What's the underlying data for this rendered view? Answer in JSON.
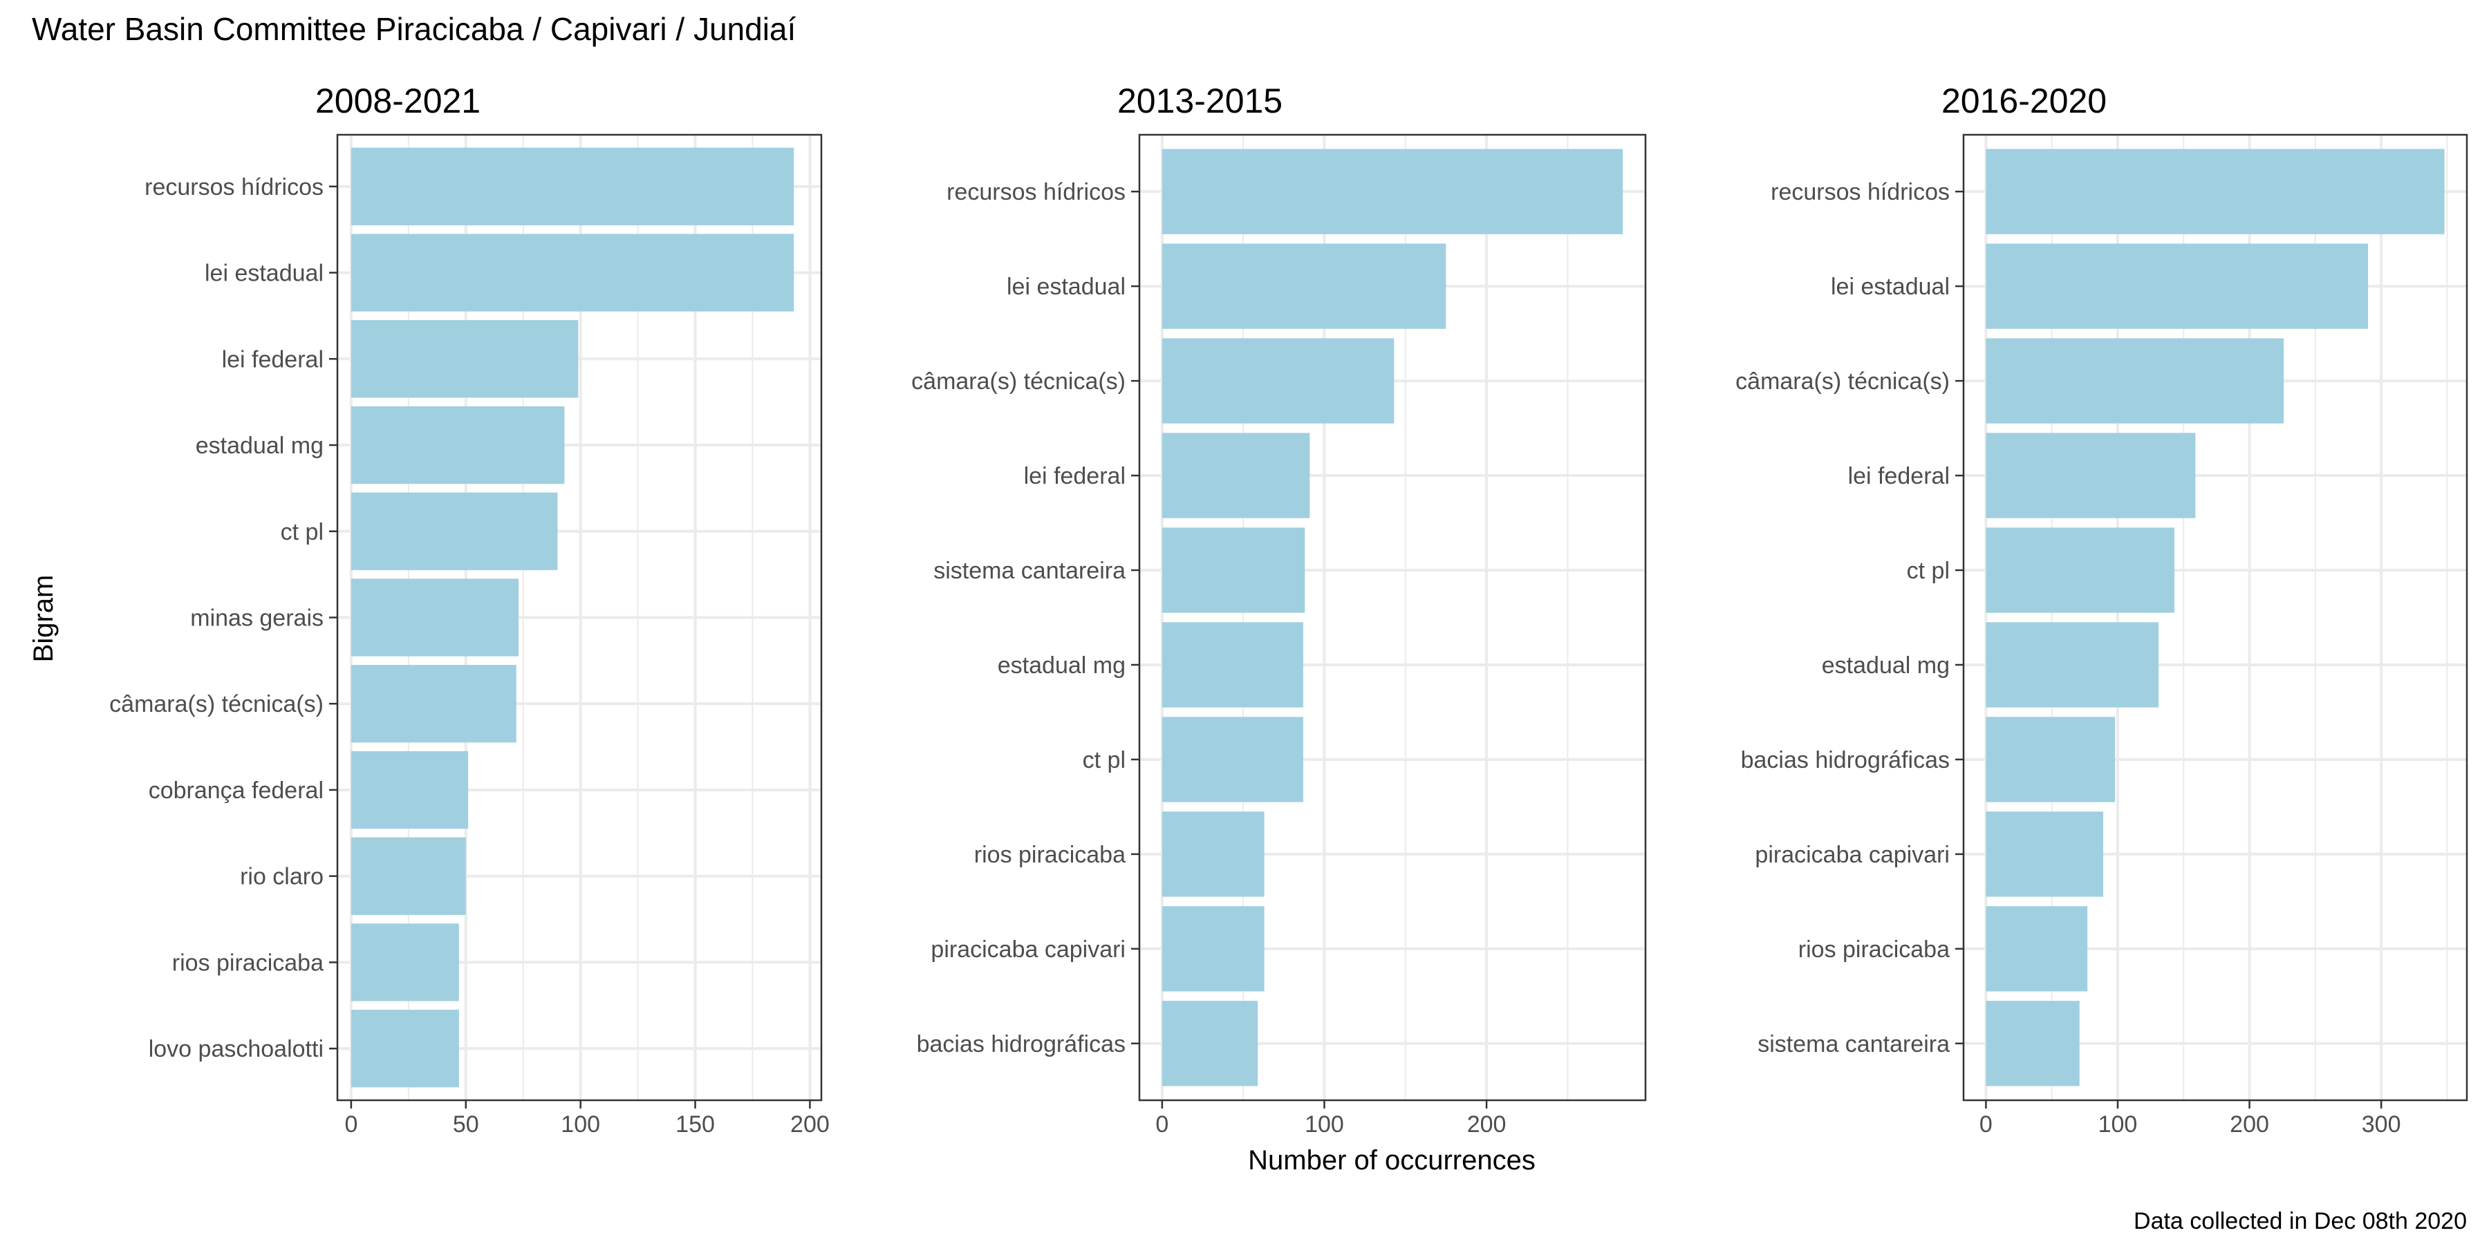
{
  "title": "Water Basin Committee Piracicaba / Capivari / Jundiaí",
  "ylabel": "Bigram",
  "xlabel": "Number of occurrences",
  "caption": "Data collected in Dec 08th 2020",
  "colors": {
    "bar": "#a0cfe0",
    "grid": "#ebebeb",
    "panel_border": "#333333",
    "text": "#000000",
    "tick_text": "#4d4d4d"
  },
  "chart_data": [
    {
      "type": "bar",
      "orientation": "horizontal",
      "title": "2008-2021",
      "categories": [
        "recursos hídricos",
        "lei estadual",
        "lei federal",
        "estadual mg",
        "ct pl",
        "minas gerais",
        "câmara(s) técnica(s)",
        "cobrança federal",
        "rio claro",
        "rios piracicaba",
        "lovo paschoalotti"
      ],
      "values": [
        193,
        193,
        99,
        93,
        90,
        73,
        72,
        51,
        50,
        47,
        47
      ],
      "xlim": [
        -6,
        205
      ],
      "xticks": [
        0,
        50,
        100,
        150,
        200
      ],
      "tick_labels": [
        "0",
        "50",
        "100",
        "150",
        "200"
      ],
      "grid": true
    },
    {
      "type": "bar",
      "orientation": "horizontal",
      "title": "2013-2015",
      "categories": [
        "recursos hídricos",
        "lei estadual",
        "câmara(s) técnica(s)",
        "lei federal",
        "sistema cantareira",
        "estadual mg",
        "ct pl",
        "rios piracicaba",
        "piracicaba capivari",
        "bacias hidrográficas"
      ],
      "values": [
        284,
        175,
        143,
        91,
        88,
        87,
        87,
        63,
        63,
        59
      ],
      "xlim": [
        -14,
        298
      ],
      "xticks": [
        0,
        100,
        200
      ],
      "tick_labels": [
        "0",
        "100",
        "200"
      ],
      "grid": true
    },
    {
      "type": "bar",
      "orientation": "horizontal",
      "title": "2016-2020",
      "categories": [
        "recursos hídricos",
        "lei estadual",
        "câmara(s) técnica(s)",
        "lei federal",
        "ct pl",
        "estadual mg",
        "bacias hidrográficas",
        "piracicaba capivari",
        "rios piracicaba",
        "sistema cantareira"
      ],
      "values": [
        348,
        290,
        226,
        159,
        143,
        131,
        98,
        89,
        77,
        71
      ],
      "xlim": [
        -17,
        365
      ],
      "xticks": [
        0,
        100,
        200,
        300
      ],
      "tick_labels": [
        "0",
        "100",
        "200",
        "300"
      ],
      "grid": true
    }
  ]
}
